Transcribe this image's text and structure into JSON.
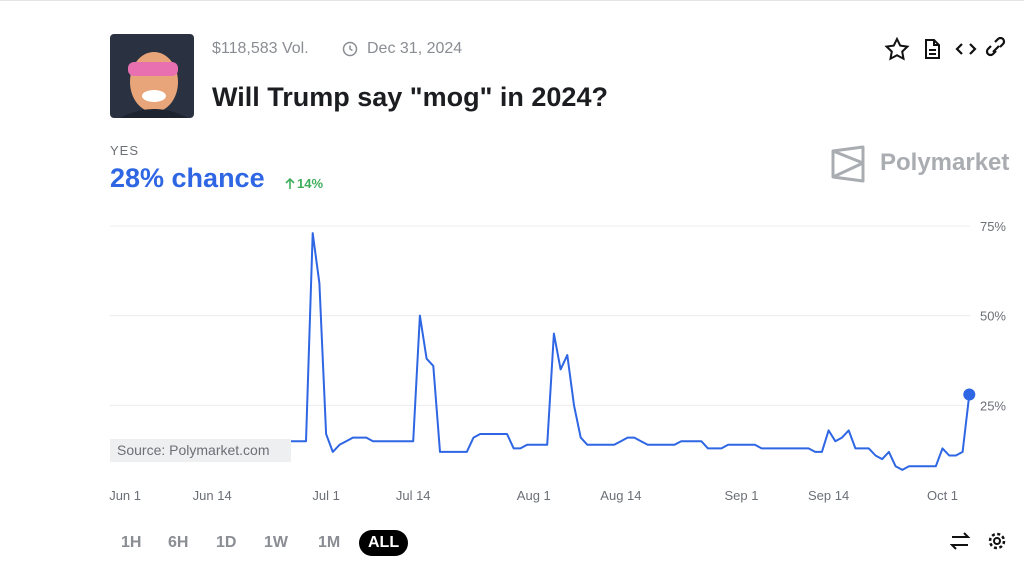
{
  "market": {
    "volume": "$118,583 Vol.",
    "end_date": "Dec 31, 2024",
    "title": "Will Trump say \"mog\" in 2024?",
    "outcome": "YES",
    "chance": "28% chance",
    "change": "14%",
    "brand": "Polymarket"
  },
  "chart_data": {
    "type": "line",
    "source": "Source: Polymarket.com",
    "color": "#2e66e3",
    "categories": [
      null,
      null,
      "Jun 1",
      null,
      null,
      null,
      null,
      null,
      null,
      null,
      null,
      null,
      null,
      null,
      null,
      "Jun 14",
      null,
      null,
      null,
      null,
      null,
      null,
      null,
      null,
      null,
      null,
      null,
      null,
      null,
      null,
      null,
      null,
      "Jul 1",
      null,
      null,
      null,
      null,
      null,
      null,
      null,
      null,
      null,
      null,
      null,
      null,
      "Jul 14",
      null,
      null,
      null,
      null,
      null,
      null,
      null,
      null,
      null,
      null,
      null,
      null,
      null,
      null,
      null,
      null,
      null,
      "Aug 1",
      null,
      null,
      null,
      null,
      null,
      null,
      null,
      null,
      null,
      null,
      null,
      null,
      "Aug 14",
      null,
      null,
      null,
      null,
      null,
      null,
      null,
      null,
      null,
      null,
      null,
      null,
      null,
      null,
      null,
      null,
      null,
      "Sep 1",
      null,
      null,
      null,
      null,
      null,
      null,
      null,
      null,
      null,
      null,
      null,
      null,
      "Sep 14",
      null,
      null,
      null,
      null,
      null,
      null,
      null,
      null,
      null,
      null,
      null,
      null,
      null,
      null,
      null,
      null,
      "Oct 1",
      null,
      null,
      null,
      null
    ],
    "values": [
      15,
      15,
      15,
      15,
      15,
      15,
      15,
      15,
      15,
      15,
      15,
      15,
      15,
      15,
      15,
      15,
      15,
      15,
      15,
      15,
      15,
      15,
      15,
      15,
      15,
      15,
      15,
      15,
      15,
      15,
      73,
      59,
      17,
      12,
      14,
      15,
      16,
      16,
      16,
      15,
      15,
      15,
      15,
      15,
      15,
      15,
      50,
      38,
      36,
      12,
      12,
      12,
      12,
      12,
      16,
      17,
      17,
      17,
      17,
      17,
      13,
      13,
      14,
      14,
      14,
      14,
      45,
      35,
      39,
      25,
      16,
      14,
      14,
      14,
      14,
      14,
      15,
      16,
      16,
      15,
      14,
      14,
      14,
      14,
      14,
      15,
      15,
      15,
      15,
      13,
      13,
      13,
      14,
      14,
      14,
      14,
      14,
      13,
      13,
      13,
      13,
      13,
      13,
      13,
      13,
      12,
      12,
      18,
      15,
      16,
      18,
      13,
      13,
      13,
      11,
      10,
      12,
      8,
      7,
      8,
      8,
      8,
      8,
      8,
      13,
      11,
      11,
      12,
      28
    ],
    "ylim": [
      0,
      80
    ],
    "yticks": [
      {
        "value": 25,
        "label": "25%"
      },
      {
        "value": 50,
        "label": "50%"
      },
      {
        "value": 75,
        "label": "75%"
      }
    ],
    "grid": true
  },
  "controls": {
    "ranges": [
      "1H",
      "6H",
      "1D",
      "1W",
      "1M",
      "ALL"
    ],
    "active": "ALL"
  }
}
